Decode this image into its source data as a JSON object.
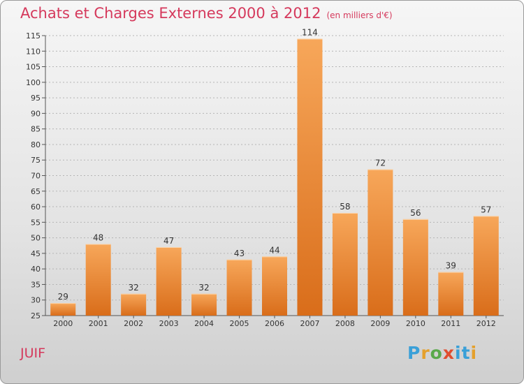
{
  "header": {
    "title": "Achats et Charges Externes 2000 à 2012",
    "subtitle": "(en milliers d'€)"
  },
  "footer": {
    "commune": "JUIF",
    "logo_text": "Proxiti"
  },
  "colors": {
    "title": "#d5395c",
    "bar_top": "#f7a75a",
    "bar_bottom": "#d96d1a",
    "grid": "#b5b5b5"
  },
  "chart_data": {
    "type": "bar",
    "categories": [
      "2000",
      "2001",
      "2002",
      "2003",
      "2004",
      "2005",
      "2006",
      "2007",
      "2008",
      "2009",
      "2010",
      "2011",
      "2012"
    ],
    "values": [
      29,
      48,
      32,
      47,
      32,
      43,
      44,
      114,
      58,
      72,
      56,
      39,
      57
    ],
    "ylim": [
      25,
      115
    ],
    "yticks": [
      25,
      30,
      35,
      40,
      45,
      50,
      55,
      60,
      65,
      70,
      75,
      80,
      85,
      90,
      95,
      100,
      105,
      110,
      115
    ],
    "grid": "horizontal dashed",
    "legend": "none",
    "xlabel": "",
    "ylabel": ""
  }
}
